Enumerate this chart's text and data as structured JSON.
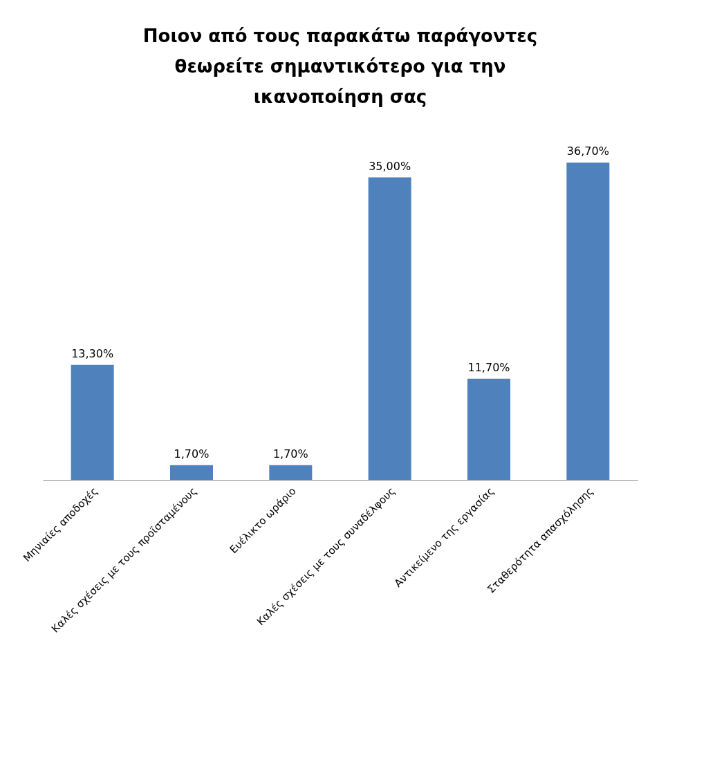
{
  "chart_data": {
    "type": "bar",
    "title": [
      "Ποιον από τους παρακάτω παράγοντες",
      "θεωρείτε σημαντικότερο για την",
      "ικανοποίηση σας"
    ],
    "categories": [
      "Μηνιαίες αποδοχές",
      "Καλές σχέσεις με τους προϊσταμένους",
      "Ευέλικτο ωράριο",
      "Καλές σχέσεις με τους συναδέλφους",
      "Αντικείμενο της εργασίας",
      "Σταθερότητα απασχόλησης"
    ],
    "values": [
      13.3,
      1.7,
      1.7,
      35.0,
      11.7,
      36.7
    ],
    "value_labels": [
      "13,30%",
      "1,70%",
      "1,70%",
      "35,00%",
      "11,70%",
      "36,70%"
    ],
    "color": "#4f81bd",
    "grid": false
  }
}
